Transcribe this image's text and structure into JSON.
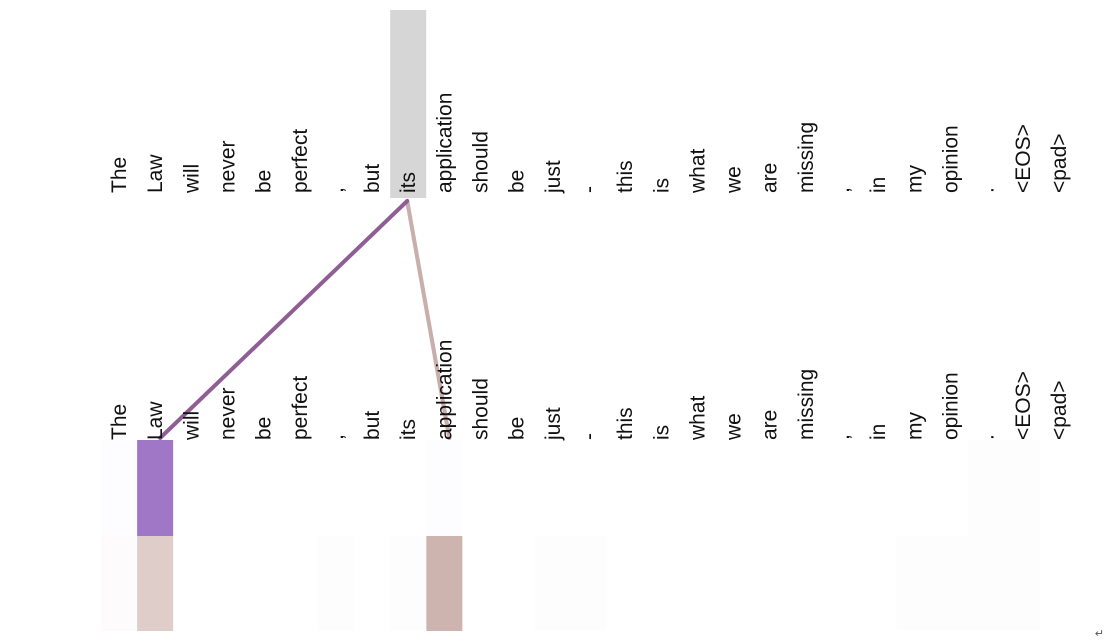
{
  "tokens": [
    "The",
    "Law",
    "will",
    "never",
    "be",
    "perfect",
    ",",
    "but",
    "its",
    "application",
    "should",
    "be",
    "just",
    "-",
    "this",
    "is",
    "what",
    "we",
    "are",
    "missing",
    ",",
    "in",
    "my",
    "opinion",
    ".",
    "<EOS>",
    "<pad>"
  ],
  "selected_token_index": 8,
  "colors": {
    "query_highlight": "#d6d6d6",
    "head_primary": "#9b6fc3",
    "head_secondary": "#c3a49d",
    "line_primary": "#8e5e94",
    "line_secondary": "#c1a39f"
  },
  "attention": {
    "primary": [
      0.02,
      0.95,
      0,
      0,
      0,
      0,
      0,
      0,
      0,
      0.02,
      0,
      0,
      0,
      0,
      0,
      0,
      0,
      0,
      0,
      0,
      0,
      0,
      0,
      0,
      0.01,
      0.01,
      0
    ],
    "secondary": [
      0.04,
      0.55,
      0,
      0,
      0,
      0,
      0.02,
      0,
      0.02,
      0.82,
      0,
      0,
      0.02,
      0.02,
      0,
      0,
      0,
      0,
      0,
      0,
      0,
      0,
      0.02,
      0.02,
      0.02,
      0.02,
      0
    ]
  },
  "corner_mark": "↵"
}
